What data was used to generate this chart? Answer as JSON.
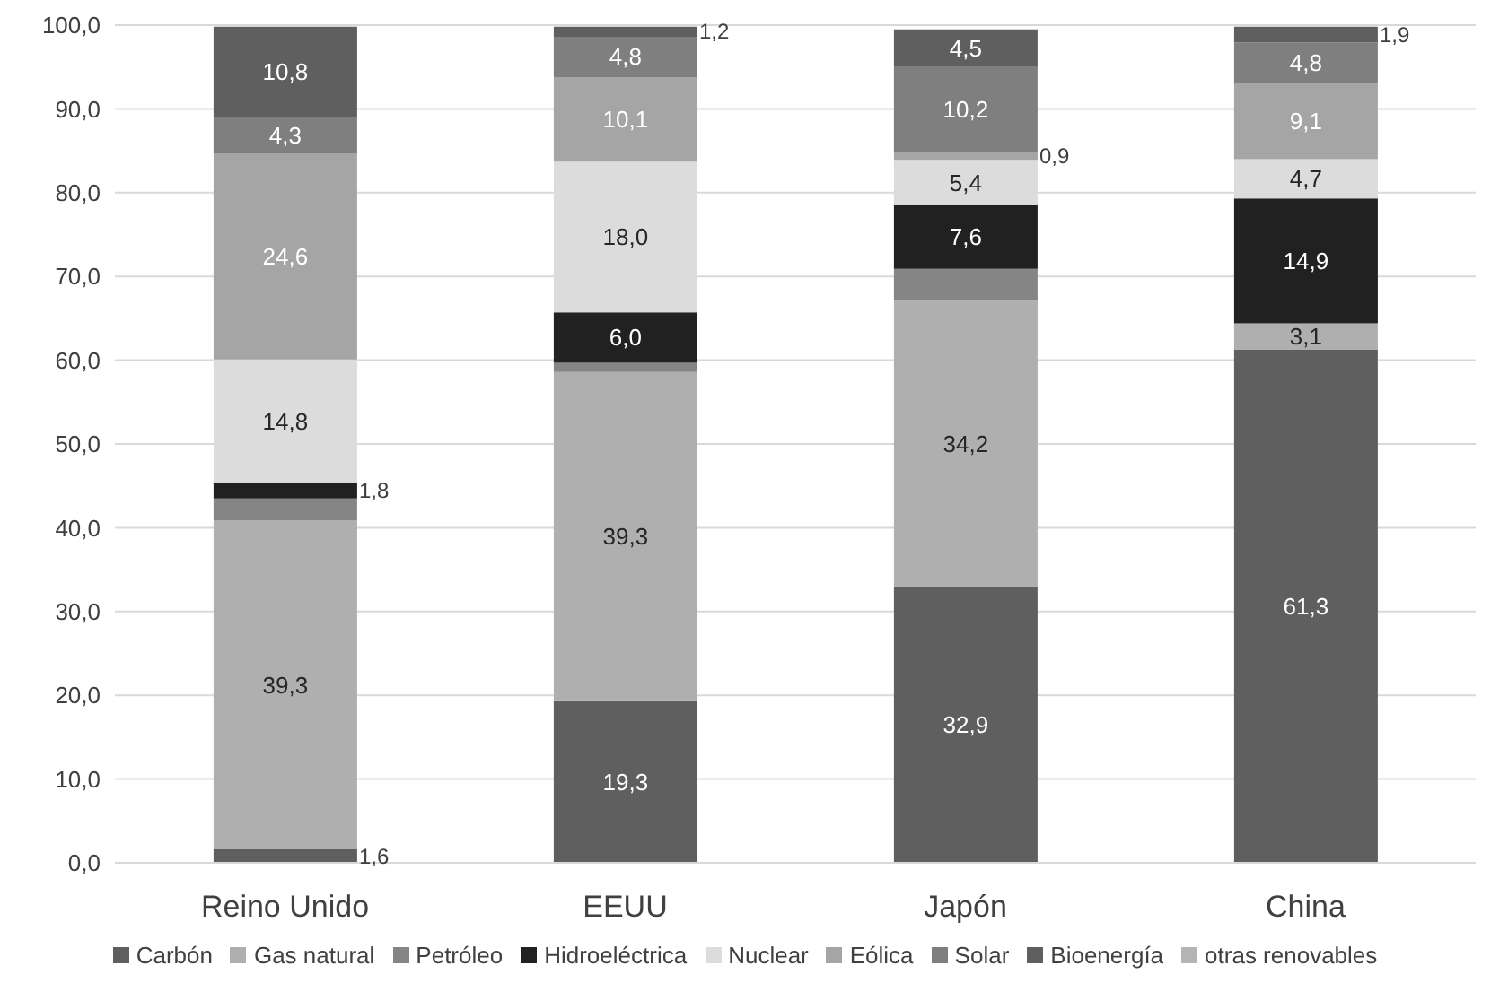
{
  "chart_data": {
    "type": "bar",
    "stacked": true,
    "categories": [
      "Reino Unido",
      "EEUU",
      "Japón",
      "China"
    ],
    "series": [
      {
        "name": "Carbón",
        "color": "#5f5f5f",
        "values": [
          1.6,
          19.3,
          32.9,
          61.3
        ],
        "value_labels": [
          "1,6",
          "19,3",
          "32,9",
          "61,3"
        ]
      },
      {
        "name": "Gas natural",
        "color": "#afafaf",
        "values": [
          39.3,
          39.3,
          34.2,
          3.1
        ],
        "value_labels": [
          "39,3",
          "39,3",
          "34,2",
          "3,1"
        ]
      },
      {
        "name": "Petróleo",
        "color": "#858585",
        "values": [
          2.6,
          1.1,
          3.8,
          null
        ],
        "value_labels": [
          null,
          null,
          null,
          null
        ]
      },
      {
        "name": "Hidroeléctrica",
        "color": "#212121",
        "values": [
          1.8,
          6.0,
          7.6,
          14.9
        ],
        "value_labels": [
          "1,8",
          "6,0",
          "7,6",
          "14,9"
        ]
      },
      {
        "name": "Nuclear",
        "color": "#dcdcdc",
        "values": [
          14.8,
          18.0,
          5.4,
          4.7
        ],
        "value_labels": [
          "14,8",
          "18,0",
          "5,4",
          "4,7"
        ]
      },
      {
        "name": "Eólica",
        "color": "#a5a5a5",
        "values": [
          24.6,
          10.1,
          0.9,
          9.1
        ],
        "value_labels": [
          "24,6",
          "10,1",
          "0,9",
          "9,1"
        ]
      },
      {
        "name": "Solar",
        "color": "#7f7f7f",
        "values": [
          4.3,
          4.8,
          10.2,
          4.8
        ],
        "value_labels": [
          "4,3",
          "4,8",
          "10,2",
          "4,8"
        ]
      },
      {
        "name": "Bioenergía",
        "color": "#5f5f5f",
        "values": [
          10.8,
          1.2,
          4.5,
          1.9
        ],
        "value_labels": [
          "10,8",
          "1,2",
          "4,5",
          "1,9"
        ]
      },
      {
        "name": "otras renovables",
        "color": "#b4b4b4",
        "values": [
          null,
          null,
          null,
          null
        ],
        "value_labels": [
          null,
          null,
          null,
          null
        ]
      }
    ],
    "ylim": [
      0,
      100
    ],
    "yticks": [
      {
        "value": 0,
        "label": "0,0"
      },
      {
        "value": 10,
        "label": "10,0"
      },
      {
        "value": 20,
        "label": "20,0"
      },
      {
        "value": 30,
        "label": "30,0"
      },
      {
        "value": 40,
        "label": "40,0"
      },
      {
        "value": 50,
        "label": "50,0"
      },
      {
        "value": 60,
        "label": "60,0"
      },
      {
        "value": 70,
        "label": "70,0"
      },
      {
        "value": 80,
        "label": "80,0"
      },
      {
        "value": 90,
        "label": "90,0"
      },
      {
        "value": 100,
        "label": "100,0"
      }
    ],
    "grid": "y",
    "legend": "bottom"
  }
}
